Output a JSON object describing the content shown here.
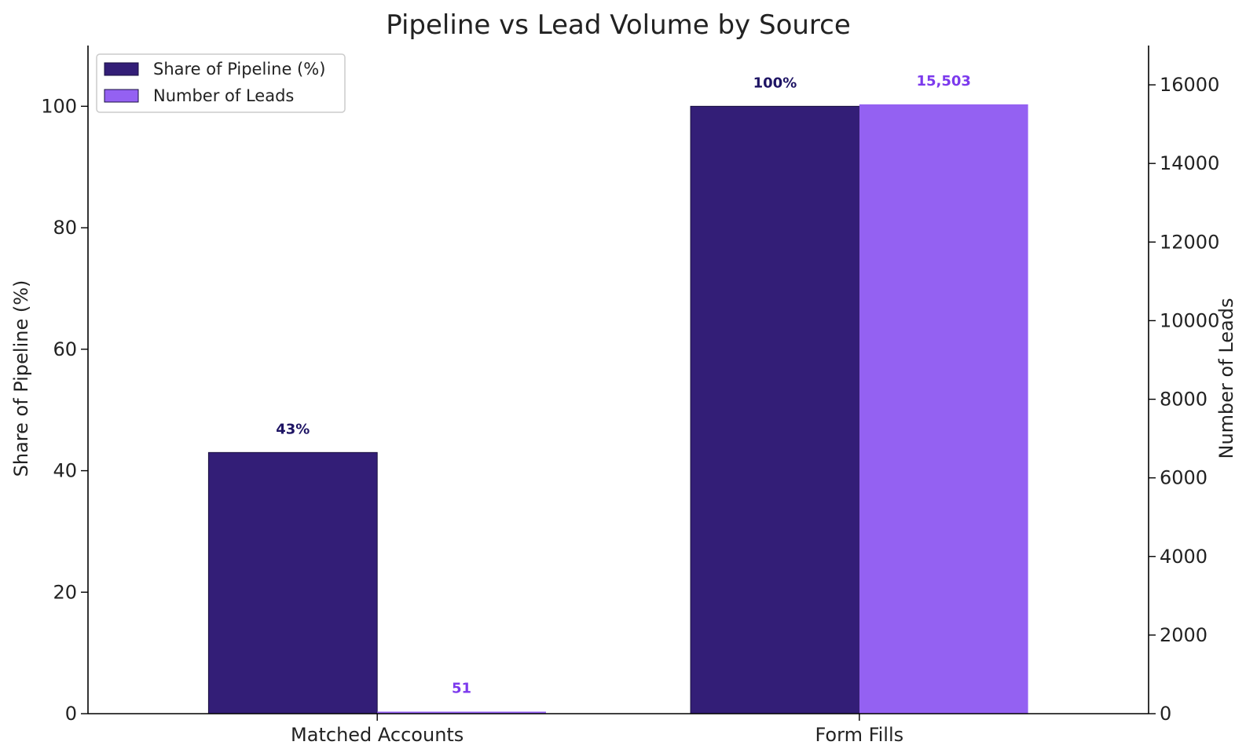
{
  "chart_data": {
    "type": "bar",
    "title": "Pipeline vs Lead Volume by Source",
    "categories": [
      "Matched Accounts",
      "Form Fills"
    ],
    "series": [
      {
        "name": "Share of Pipeline (%)",
        "axis": "left",
        "values": [
          43,
          100
        ],
        "labels": [
          "43%",
          "100%"
        ],
        "color": "#331e77"
      },
      {
        "name": "Number of Leads",
        "axis": "right",
        "values": [
          51,
          15503
        ],
        "labels": [
          "51",
          "15,503"
        ],
        "color": "#9461f2"
      }
    ],
    "left_axis": {
      "label": "Share of Pipeline (%)",
      "ylim": [
        0,
        110
      ],
      "ticks": [
        0,
        20,
        40,
        60,
        80,
        100
      ]
    },
    "right_axis": {
      "label": "Number of Leads",
      "ylim": [
        0,
        17000
      ],
      "ticks": [
        0,
        2000,
        4000,
        6000,
        8000,
        10000,
        12000,
        14000,
        16000
      ]
    },
    "legend": {
      "position": "top-left"
    },
    "label_colors": {
      "left": "#1e1464",
      "right": "#7c3aed"
    },
    "grid": false
  }
}
